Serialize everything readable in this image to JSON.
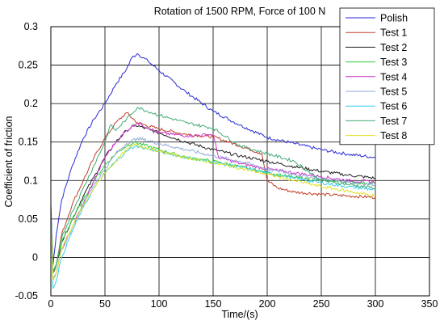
{
  "chart_data": {
    "type": "line",
    "title": "Rotation of 1500 RPM, Force of 100 N",
    "xlabel": "Time/(s)",
    "ylabel": "Coefficient of friction",
    "xlim": [
      0,
      350
    ],
    "ylim": [
      -0.05,
      0.3
    ],
    "xticks": [
      0,
      50,
      100,
      150,
      200,
      250,
      300,
      350
    ],
    "xtick_labels": [
      "0",
      "50",
      "100",
      "150",
      "200",
      "250",
      "300",
      "350"
    ],
    "yticks": [
      -0.05,
      0,
      0.05,
      0.1,
      0.15,
      0.2,
      0.25,
      0.3
    ],
    "ytick_labels": [
      "-0.05",
      "0",
      "0.05",
      "0.1",
      "0.15",
      "0.2",
      "0.25",
      "0.3"
    ],
    "grid": true,
    "legend_position": "top-right",
    "series": [
      {
        "name": "Polish",
        "color": "#2a2ad8",
        "x": [
          0,
          2,
          5,
          10,
          20,
          30,
          40,
          50,
          60,
          70,
          75,
          80,
          90,
          100,
          125,
          150,
          175,
          200,
          225,
          250,
          275,
          300
        ],
        "y": [
          0.07,
          -0.01,
          0.03,
          0.075,
          0.12,
          0.155,
          0.18,
          0.2,
          0.225,
          0.245,
          0.26,
          0.265,
          0.255,
          0.243,
          0.215,
          0.19,
          0.172,
          0.156,
          0.148,
          0.14,
          0.134,
          0.13
        ]
      },
      {
        "name": "Test 1",
        "color": "#c0402a",
        "x": [
          0,
          2,
          5,
          10,
          20,
          30,
          40,
          50,
          60,
          70,
          80,
          100,
          125,
          150,
          175,
          195,
          200,
          210,
          225,
          250,
          275,
          300
        ],
        "y": [
          0.06,
          -0.02,
          -0.01,
          0.03,
          0.07,
          0.1,
          0.13,
          0.155,
          0.175,
          0.188,
          0.175,
          0.167,
          0.16,
          0.157,
          0.145,
          0.135,
          0.1,
          0.09,
          0.085,
          0.082,
          0.08,
          0.078
        ]
      },
      {
        "name": "Test 2",
        "color": "#202020",
        "x": [
          0,
          2,
          5,
          10,
          20,
          30,
          40,
          50,
          60,
          70,
          78,
          100,
          125,
          150,
          175,
          200,
          225,
          250,
          275,
          300
        ],
        "y": [
          0.06,
          -0.02,
          -0.01,
          0.02,
          0.05,
          0.08,
          0.105,
          0.13,
          0.15,
          0.165,
          0.172,
          0.162,
          0.15,
          0.14,
          0.132,
          0.125,
          0.118,
          0.112,
          0.107,
          0.103
        ]
      },
      {
        "name": "Test 3",
        "color": "#33cc33",
        "x": [
          0,
          2,
          5,
          10,
          20,
          30,
          40,
          50,
          60,
          70,
          77,
          100,
          125,
          150,
          175,
          200,
          225,
          250,
          275,
          300
        ],
        "y": [
          0.06,
          -0.02,
          -0.01,
          0.02,
          0.05,
          0.075,
          0.1,
          0.12,
          0.135,
          0.145,
          0.15,
          0.14,
          0.13,
          0.125,
          0.118,
          0.11,
          0.104,
          0.1,
          0.098,
          0.096
        ]
      },
      {
        "name": "Test 4",
        "color": "#cc33cc",
        "x": [
          0,
          2,
          5,
          10,
          20,
          30,
          40,
          50,
          60,
          70,
          80,
          100,
          125,
          150,
          155,
          160,
          175,
          200,
          225,
          250,
          275,
          300
        ],
        "y": [
          0.05,
          -0.03,
          -0.02,
          0.01,
          0.04,
          0.07,
          0.1,
          0.13,
          0.15,
          0.165,
          0.175,
          0.162,
          0.158,
          0.16,
          0.13,
          0.128,
          0.122,
          0.115,
          0.11,
          0.105,
          0.1,
          0.098
        ]
      },
      {
        "name": "Test 5",
        "color": "#8fa8d8",
        "x": [
          0,
          2,
          5,
          10,
          20,
          30,
          40,
          50,
          60,
          70,
          80,
          100,
          125,
          150,
          175,
          200,
          225,
          250,
          275,
          300
        ],
        "y": [
          0.05,
          -0.03,
          -0.02,
          0.01,
          0.04,
          0.07,
          0.095,
          0.115,
          0.135,
          0.148,
          0.155,
          0.148,
          0.14,
          0.132,
          0.125,
          0.115,
          0.108,
          0.102,
          0.098,
          0.095
        ]
      },
      {
        "name": "Test 6",
        "color": "#33ccee",
        "x": [
          0,
          2,
          5,
          10,
          20,
          30,
          40,
          50,
          60,
          70,
          78,
          100,
          125,
          150,
          175,
          200,
          225,
          250,
          275,
          300
        ],
        "y": [
          0.05,
          -0.04,
          -0.03,
          0.0,
          0.035,
          0.065,
          0.09,
          0.11,
          0.125,
          0.138,
          0.145,
          0.138,
          0.13,
          0.124,
          0.117,
          0.11,
          0.103,
          0.097,
          0.092,
          0.088
        ]
      },
      {
        "name": "Test 7",
        "color": "#44aa77",
        "x": [
          0,
          2,
          5,
          10,
          20,
          30,
          40,
          50,
          55,
          60,
          70,
          80,
          100,
          125,
          150,
          175,
          200,
          225,
          250,
          275,
          300
        ],
        "y": [
          0.06,
          -0.02,
          -0.01,
          0.025,
          0.06,
          0.09,
          0.12,
          0.15,
          0.172,
          0.165,
          0.18,
          0.195,
          0.185,
          0.175,
          0.168,
          0.145,
          0.135,
          0.125,
          0.1,
          0.095,
          0.09
        ]
      },
      {
        "name": "Test 8",
        "color": "#e0e020",
        "x": [
          0,
          2,
          5,
          10,
          20,
          30,
          40,
          50,
          60,
          70,
          78,
          100,
          125,
          150,
          175,
          200,
          225,
          250,
          275,
          300
        ],
        "y": [
          0.05,
          -0.03,
          -0.02,
          0.01,
          0.04,
          0.068,
          0.09,
          0.11,
          0.125,
          0.14,
          0.147,
          0.138,
          0.13,
          0.123,
          0.116,
          0.108,
          0.1,
          0.092,
          0.086,
          0.08
        ]
      }
    ]
  }
}
